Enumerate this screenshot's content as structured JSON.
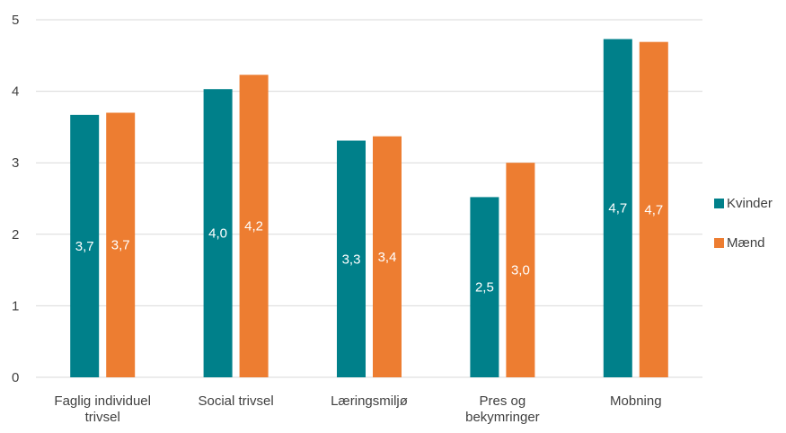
{
  "chart_data": {
    "type": "bar",
    "categories": [
      [
        "Faglig individuel",
        "trivsel"
      ],
      [
        "Social trivsel"
      ],
      [
        "Læringsmiljø"
      ],
      [
        "Pres og",
        "bekymringer"
      ],
      [
        "Mobning"
      ]
    ],
    "series": [
      {
        "name": "Kvinder",
        "color": "#00808a",
        "values": [
          3.67,
          4.03,
          3.31,
          2.52,
          4.73
        ],
        "labels": [
          "3,7",
          "4,0",
          "3,3",
          "2,5",
          "4,7"
        ]
      },
      {
        "name": "Mænd",
        "color": "#ed7d31",
        "values": [
          3.7,
          4.23,
          3.37,
          3.0,
          4.69
        ],
        "labels": [
          "3,7",
          "4,2",
          "3,4",
          "3,0",
          "4,7"
        ]
      }
    ],
    "ylim": [
      0,
      5
    ],
    "yticks": [
      "0",
      "1",
      "2",
      "3",
      "4",
      "5"
    ],
    "grid": true,
    "legend_position": "right"
  }
}
